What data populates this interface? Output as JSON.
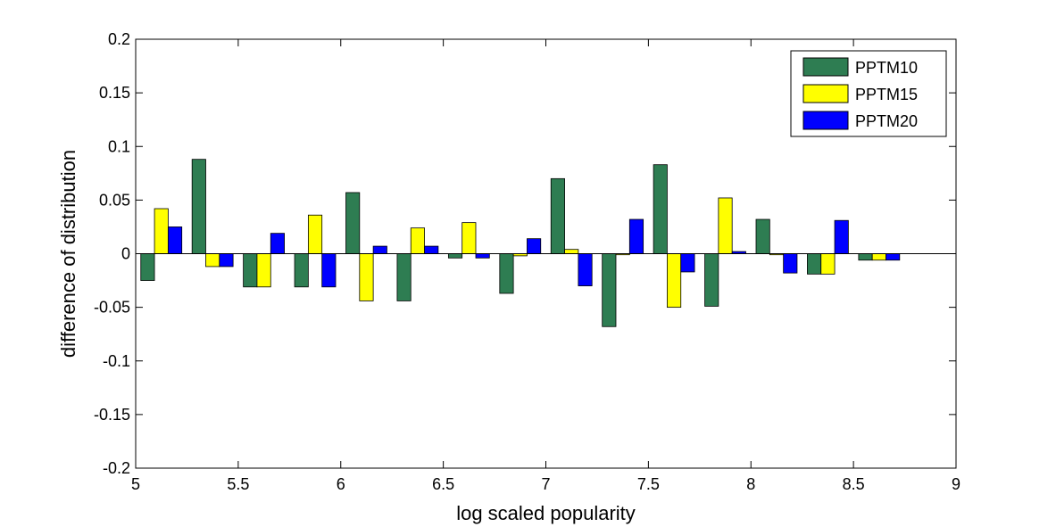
{
  "chart_data": {
    "type": "bar",
    "xlabel": "log scaled popularity",
    "ylabel": "difference of distribution",
    "xlim": [
      5,
      9
    ],
    "ylim": [
      -0.2,
      0.2
    ],
    "xticks": [
      "5",
      "5.5",
      "6",
      "6.5",
      "7",
      "7.5",
      "8",
      "8.5",
      "9"
    ],
    "yticks": [
      "0.2",
      "0.15",
      "0.1",
      "0.05",
      "0",
      "-0.05",
      "-0.1",
      "-0.15",
      "-0.2"
    ],
    "grid": false,
    "legend_position": "top-right",
    "x": [
      5.125,
      5.375,
      5.625,
      5.875,
      6.125,
      6.375,
      6.625,
      6.875,
      7.125,
      7.375,
      7.625,
      7.875,
      8.125,
      8.375,
      8.625
    ],
    "series": [
      {
        "name": "PPTM10",
        "color": "#2e7d52",
        "values": [
          -0.025,
          0.088,
          -0.031,
          -0.031,
          0.057,
          -0.044,
          -0.004,
          -0.037,
          0.07,
          -0.068,
          0.083,
          -0.049,
          0.032,
          -0.019,
          -0.006
        ]
      },
      {
        "name": "PPTM15",
        "color": "#ffff00",
        "values": [
          0.042,
          -0.012,
          -0.031,
          0.036,
          -0.044,
          0.024,
          0.029,
          -0.002,
          0.004,
          -0.001,
          -0.05,
          0.052,
          -0.001,
          -0.019,
          -0.006
        ]
      },
      {
        "name": "PPTM20",
        "color": "#0000ff",
        "values": [
          0.025,
          -0.012,
          0.019,
          -0.031,
          0.007,
          0.007,
          -0.004,
          0.014,
          -0.03,
          0.032,
          -0.017,
          0.002,
          -0.018,
          0.031,
          -0.006
        ]
      }
    ]
  }
}
